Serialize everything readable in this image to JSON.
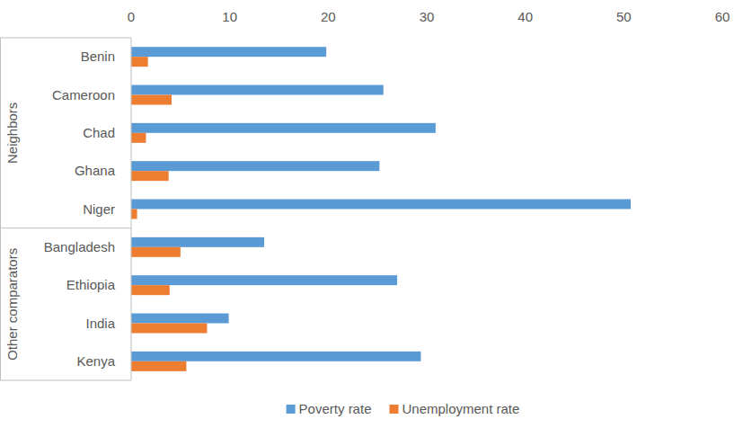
{
  "chart_data": {
    "type": "bar",
    "orientation": "horizontal",
    "categories": [
      "Benin",
      "Cameroon",
      "Chad",
      "Ghana",
      "Niger",
      "Bangladesh",
      "Ethiopia",
      "India",
      "Kenya"
    ],
    "category_groups": [
      {
        "label": "Neighbors",
        "size": 5
      },
      {
        "label": "Other comparators",
        "size": 4
      }
    ],
    "series": [
      {
        "name": "Poverty rate",
        "color": "#5b9bd5",
        "values": [
          19.8,
          25.6,
          30.9,
          25.2,
          50.7,
          13.5,
          27.0,
          9.9,
          29.4
        ]
      },
      {
        "name": "Unemployment rate",
        "color": "#ed7d31",
        "values": [
          1.7,
          4.1,
          1.5,
          3.8,
          0.6,
          5.0,
          3.9,
          7.7,
          5.6
        ]
      }
    ],
    "xlim": [
      0,
      60
    ],
    "xticks": [
      0,
      10,
      20,
      30,
      40,
      50,
      60
    ],
    "grid": false,
    "legend": "bottom"
  }
}
